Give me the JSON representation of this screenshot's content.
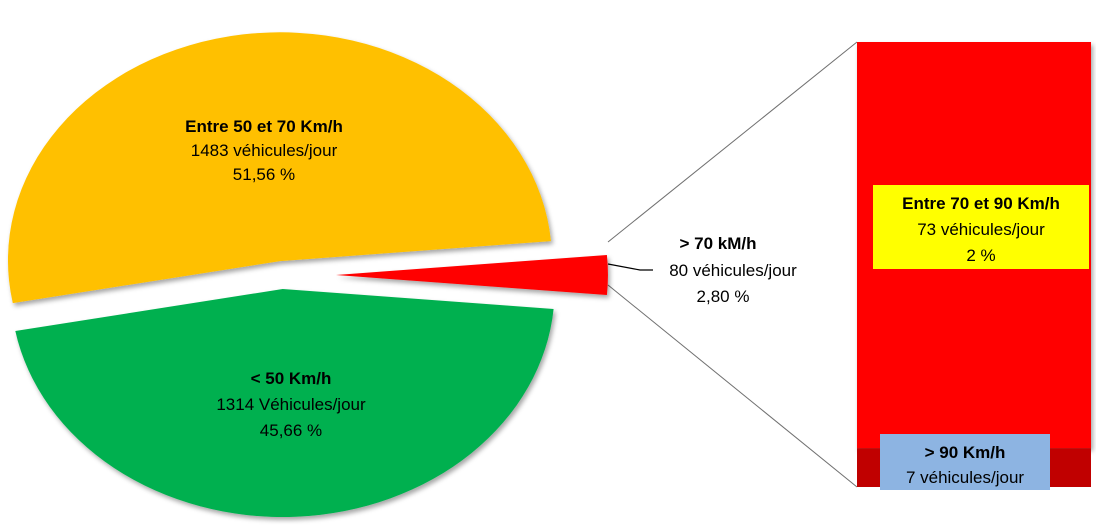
{
  "chart_data": {
    "type": "bar-of-pie",
    "title": "",
    "colors": {
      "mid": "#ffc000",
      "low": "#00b050",
      "high": "#ff0000",
      "high_dark": "#c00000",
      "box_yellow": "#ffff00",
      "box_blue": "#8db4e2"
    },
    "pie": {
      "slices": [
        {
          "id": "mid",
          "value": 51.56,
          "title": "Entre 50 et 70 Km/h",
          "count_text": "1483 véhicules/jour",
          "percent_text": "51,56 %",
          "color": "#ffc000"
        },
        {
          "id": "low",
          "value": 45.66,
          "title": "< 50 Km/h",
          "count_text": "1314 Véhicules/jour",
          "percent_text": "45,66 %",
          "color": "#00b050"
        },
        {
          "id": "high",
          "value": 2.8,
          "title": "> 70 kM/h",
          "count_text": "80 véhicules/jour",
          "percent_text": "2,80 %",
          "color": "#ff0000"
        }
      ]
    },
    "bar": {
      "segments": [
        {
          "id": "70to90",
          "value": 73,
          "title": "Entre 70 et 90 Km/h",
          "count_text": "73 véhicules/jour",
          "percent_text": "2 %",
          "color": "#ff0000"
        },
        {
          "id": "over90",
          "value": 7,
          "title": "> 90 Km/h",
          "count_text": "7 véhicules/jour",
          "color": "#c00000"
        }
      ]
    }
  }
}
